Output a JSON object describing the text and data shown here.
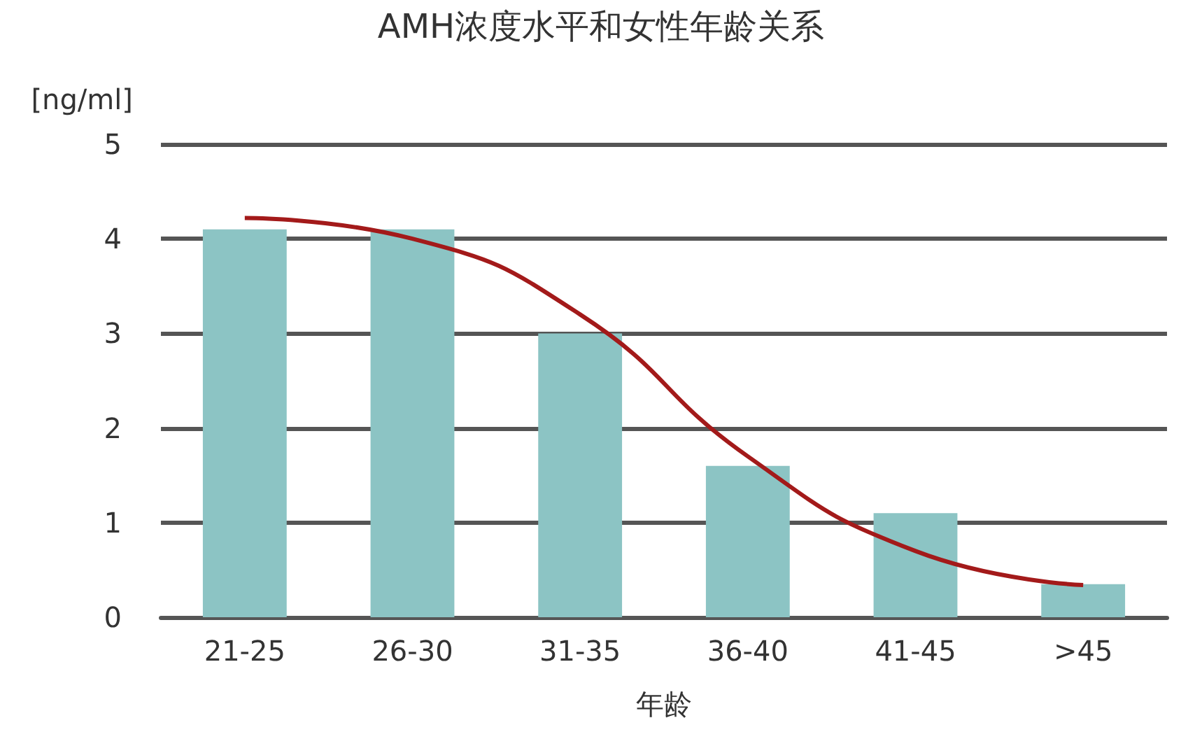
{
  "chart_data": {
    "type": "bar",
    "title": "AMH浓度水平和女性年龄关系",
    "ylabel": "[ng/ml]",
    "xlabel": "年龄",
    "categories": [
      "21-25",
      "26-30",
      "31-35",
      "36-40",
      "41-45",
      ">45"
    ],
    "series": [
      {
        "color": "#8cc4c4",
        "values": [
          4.1,
          4.1,
          3.0,
          1.6,
          1.1,
          0.35
        ]
      },
      {
        "type": "line",
        "color": "#a31a1a",
        "values": [
          4.22,
          4.0,
          3.2,
          1.7,
          0.7,
          0.34
        ],
        "marker": "none"
      }
    ],
    "ylim": [
      0,
      5
    ],
    "yticks": [
      0,
      1,
      2,
      3,
      4,
      5
    ],
    "grid": "y"
  }
}
